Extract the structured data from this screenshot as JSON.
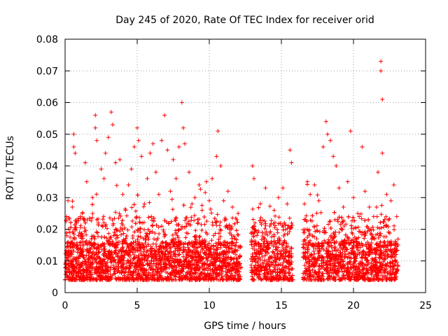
{
  "chart_data": {
    "type": "scatter",
    "title": "Day 245 of 2020, Rate Of TEC Index for receiver orid",
    "xlabel": "GPS time / hours",
    "ylabel": "ROTI / TECUs",
    "xlim": [
      0,
      25
    ],
    "ylim": [
      0,
      0.08
    ],
    "xticks": [
      0,
      5,
      10,
      15,
      20,
      25
    ],
    "yticks": [
      0,
      0.01,
      0.02,
      0.03,
      0.04,
      0.05,
      0.06,
      0.07,
      0.08
    ],
    "ytick_labels": [
      "0",
      "0.01",
      "0.02",
      "0.03",
      "0.04",
      "0.05",
      "0.06",
      "0.07",
      "0.08"
    ],
    "grid": true,
    "marker": "+",
    "series_color": "#ff0000",
    "data_gaps_hours": [
      [
        12.2,
        12.9
      ],
      [
        15.8,
        16.5
      ],
      [
        23.1,
        25
      ]
    ],
    "points": [
      [
        0.1,
        0.012
      ],
      [
        0.2,
        0.029
      ],
      [
        0.3,
        0.008
      ],
      [
        0.4,
        0.016
      ],
      [
        0.5,
        0.027
      ],
      [
        0.6,
        0.046
      ],
      [
        0.6,
        0.05
      ],
      [
        0.7,
        0.044
      ],
      [
        0.8,
        0.011
      ],
      [
        1.0,
        0.019
      ],
      [
        1.2,
        0.025
      ],
      [
        1.4,
        0.041
      ],
      [
        1.5,
        0.035
      ],
      [
        1.7,
        0.014
      ],
      [
        1.9,
        0.03
      ],
      [
        2.1,
        0.056
      ],
      [
        2.1,
        0.052
      ],
      [
        2.2,
        0.048
      ],
      [
        2.3,
        0.022
      ],
      [
        2.5,
        0.039
      ],
      [
        2.7,
        0.036
      ],
      [
        2.8,
        0.044
      ],
      [
        3.0,
        0.049
      ],
      [
        3.2,
        0.057
      ],
      [
        3.3,
        0.053
      ],
      [
        3.5,
        0.041
      ],
      [
        3.6,
        0.018
      ],
      [
        3.8,
        0.042
      ],
      [
        4.0,
        0.031
      ],
      [
        4.2,
        0.026
      ],
      [
        4.4,
        0.034
      ],
      [
        4.6,
        0.039
      ],
      [
        4.8,
        0.046
      ],
      [
        5.0,
        0.052
      ],
      [
        5.1,
        0.048
      ],
      [
        5.3,
        0.043
      ],
      [
        5.5,
        0.028
      ],
      [
        5.7,
        0.036
      ],
      [
        5.9,
        0.044
      ],
      [
        6.1,
        0.047
      ],
      [
        6.3,
        0.038
      ],
      [
        6.5,
        0.031
      ],
      [
        6.7,
        0.048
      ],
      [
        6.9,
        0.056
      ],
      [
        7.1,
        0.045
      ],
      [
        7.3,
        0.032
      ],
      [
        7.5,
        0.042
      ],
      [
        7.7,
        0.036
      ],
      [
        7.9,
        0.046
      ],
      [
        8.1,
        0.06
      ],
      [
        8.2,
        0.052
      ],
      [
        8.3,
        0.047
      ],
      [
        8.6,
        0.038
      ],
      [
        8.8,
        0.028
      ],
      [
        9.0,
        0.03
      ],
      [
        9.3,
        0.034
      ],
      [
        9.5,
        0.026
      ],
      [
        9.8,
        0.035
      ],
      [
        10.0,
        0.029
      ],
      [
        10.2,
        0.036
      ],
      [
        10.5,
        0.043
      ],
      [
        10.6,
        0.051
      ],
      [
        10.8,
        0.04
      ],
      [
        11.0,
        0.029
      ],
      [
        11.3,
        0.032
      ],
      [
        11.6,
        0.027
      ],
      [
        11.9,
        0.023
      ],
      [
        12.0,
        0.025
      ],
      [
        13.0,
        0.04
      ],
      [
        13.1,
        0.036
      ],
      [
        13.3,
        0.018
      ],
      [
        13.6,
        0.022
      ],
      [
        13.9,
        0.033
      ],
      [
        14.2,
        0.021
      ],
      [
        14.5,
        0.026
      ],
      [
        14.8,
        0.03
      ],
      [
        15.1,
        0.033
      ],
      [
        15.4,
        0.028
      ],
      [
        15.6,
        0.045
      ],
      [
        15.7,
        0.041
      ],
      [
        16.6,
        0.028
      ],
      [
        16.8,
        0.035
      ],
      [
        17.0,
        0.031
      ],
      [
        17.3,
        0.034
      ],
      [
        17.6,
        0.029
      ],
      [
        17.9,
        0.046
      ],
      [
        18.1,
        0.054
      ],
      [
        18.2,
        0.05
      ],
      [
        18.4,
        0.048
      ],
      [
        18.6,
        0.043
      ],
      [
        18.8,
        0.04
      ],
      [
        19.0,
        0.033
      ],
      [
        19.3,
        0.027
      ],
      [
        19.6,
        0.035
      ],
      [
        19.8,
        0.051
      ],
      [
        20.0,
        0.03
      ],
      [
        20.3,
        0.025
      ],
      [
        20.6,
        0.046
      ],
      [
        20.8,
        0.032
      ],
      [
        21.1,
        0.027
      ],
      [
        21.4,
        0.024
      ],
      [
        21.7,
        0.038
      ],
      [
        21.9,
        0.073
      ],
      [
        21.9,
        0.07
      ],
      [
        22.0,
        0.061
      ],
      [
        22.0,
        0.044
      ],
      [
        22.3,
        0.031
      ],
      [
        22.6,
        0.029
      ],
      [
        22.8,
        0.034
      ],
      [
        23.0,
        0.024
      ]
    ]
  }
}
